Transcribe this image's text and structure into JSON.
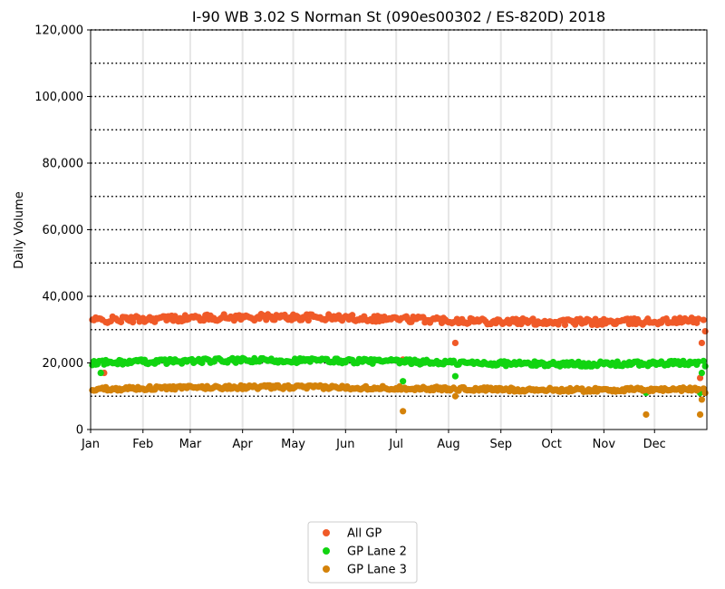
{
  "chart_data": {
    "type": "scatter",
    "title": "I-90  WB  3.02  S Norman St (090es00302 / ES-820D) 2018",
    "xlabel": "",
    "ylabel": "Daily Volume",
    "xlim": [
      0,
      365
    ],
    "ylim": [
      0,
      120000
    ],
    "y_ticks": [
      0,
      20000,
      40000,
      60000,
      80000,
      100000,
      120000
    ],
    "y_tick_labels": [
      "0",
      "20,000",
      "40,000",
      "60,000",
      "80,000",
      "100,000",
      "120,000"
    ],
    "y_dotted_grid": [
      10000,
      20000,
      30000,
      40000,
      50000,
      60000,
      70000,
      80000,
      90000,
      100000,
      110000,
      120000
    ],
    "x_ticks": [
      0,
      31,
      59,
      90,
      120,
      151,
      181,
      212,
      243,
      273,
      304,
      334
    ],
    "x_tick_labels": [
      "Jan",
      "Feb",
      "Mar",
      "Apr",
      "May",
      "Jun",
      "Jul",
      "Aug",
      "Sep",
      "Oct",
      "Nov",
      "Dec"
    ],
    "legend_position": "bottom-center",
    "series": [
      {
        "name": "All GP",
        "color": "#f05a28",
        "base": 33000,
        "amp": 1200
      },
      {
        "name": "GP Lane 2",
        "color": "#11d411",
        "base": 20200,
        "amp": 900
      },
      {
        "name": "GP Lane 3",
        "color": "#d4820a",
        "base": 12300,
        "amp": 700
      }
    ],
    "outliers": {
      "All GP": [
        [
          8,
          17000
        ],
        [
          185,
          21000
        ],
        [
          216,
          26000
        ],
        [
          361,
          15500
        ],
        [
          362,
          26000
        ],
        [
          364,
          29500
        ]
      ],
      "GP Lane 2": [
        [
          6,
          17000
        ],
        [
          185,
          14500
        ],
        [
          216,
          16000
        ],
        [
          329,
          11000
        ],
        [
          361,
          11000
        ],
        [
          362,
          17000
        ],
        [
          364,
          19000
        ]
      ],
      "GP Lane 3": [
        [
          185,
          5500
        ],
        [
          216,
          10000
        ],
        [
          329,
          4500
        ],
        [
          361,
          4500
        ],
        [
          362,
          9000
        ],
        [
          364,
          11000
        ]
      ]
    }
  }
}
